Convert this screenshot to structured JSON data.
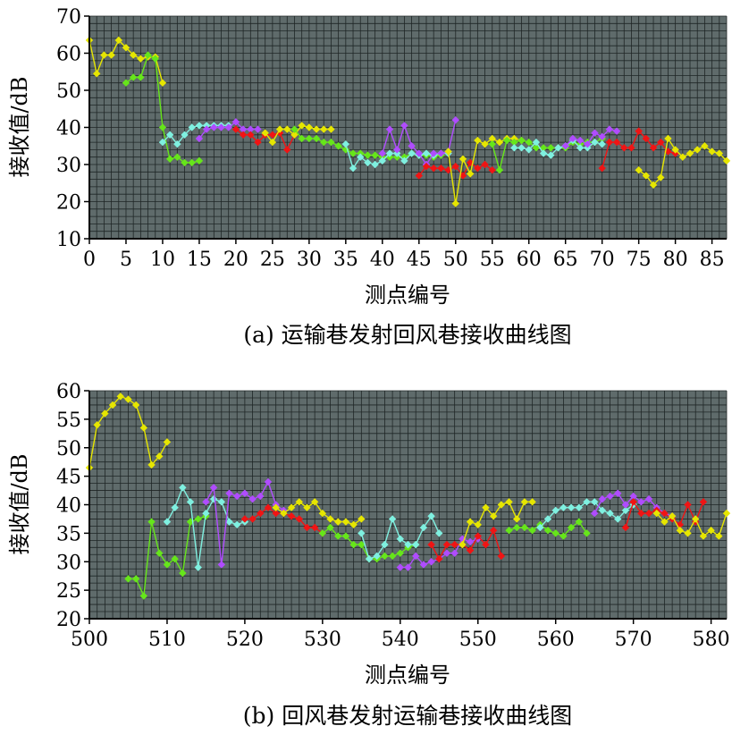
{
  "colors": {
    "plot_background": "#5f6b6b",
    "grid": "#1f2626",
    "yellow": "#e6e600",
    "green": "#66e61a",
    "cyan": "#7ff0e0",
    "purple": "#b04cff",
    "red": "#f01414"
  },
  "chart_data": [
    {
      "type": "line",
      "caption": "(a) 运输巷发射回风巷接收曲线图",
      "xlabel": "测点编号",
      "ylabel": "接收值/dB",
      "xlim": [
        0,
        87
      ],
      "ylim": [
        10,
        70
      ],
      "xticks": [
        "0",
        "5",
        "10",
        "15",
        "20",
        "25",
        "30",
        "35",
        "40",
        "45",
        "50",
        "55",
        "60",
        "65",
        "70",
        "75",
        "80",
        "85"
      ],
      "yticks": [
        "10",
        "20",
        "30",
        "40",
        "50",
        "60",
        "70"
      ],
      "grid": true,
      "series": [
        {
          "color": "yellow",
          "x": [
            0,
            1,
            2,
            3,
            4,
            5,
            6,
            7,
            8,
            9,
            10
          ],
          "y": [
            63.5,
            54.5,
            59.5,
            59.5,
            63.5,
            61.5,
            59.5,
            58.5,
            59,
            59,
            52
          ]
        },
        {
          "color": "green",
          "x": [
            5,
            6,
            7,
            8,
            9,
            10,
            11,
            12,
            13,
            14,
            15
          ],
          "y": [
            52,
            53.5,
            53.5,
            59.5,
            58.5,
            40,
            31.5,
            32,
            30.5,
            30.5,
            31
          ]
        },
        {
          "color": "cyan",
          "x": [
            10,
            11,
            12,
            13,
            14,
            15,
            16,
            17,
            18,
            19
          ],
          "y": [
            36,
            38,
            35.5,
            38,
            40,
            40.5,
            40.5,
            40.5,
            40.5,
            40.5
          ]
        },
        {
          "color": "purple",
          "x": [
            15,
            16,
            17,
            18,
            19,
            20,
            21,
            22,
            23
          ],
          "y": [
            37,
            39.5,
            40,
            40,
            40,
            41.5,
            39.5,
            39.5,
            39.5
          ]
        },
        {
          "color": "red",
          "x": [
            20,
            21,
            22,
            23,
            24,
            25,
            26,
            27,
            28
          ],
          "y": [
            39.5,
            38,
            38,
            36,
            38,
            38,
            38.5,
            34,
            38
          ]
        },
        {
          "color": "yellow",
          "x": [
            24,
            25,
            26,
            27,
            28,
            29,
            30,
            31,
            32,
            33
          ],
          "y": [
            38.5,
            36,
            39.5,
            39.5,
            38,
            40.5,
            40,
            39.5,
            39.5,
            39.5
          ]
        },
        {
          "color": "green",
          "x": [
            28,
            29,
            30,
            31,
            32,
            33,
            34,
            35,
            36,
            37,
            38,
            39,
            40,
            41,
            42,
            43,
            44,
            45,
            46,
            47,
            48
          ],
          "y": [
            39.5,
            37,
            37,
            37,
            36,
            36,
            35,
            34,
            33,
            33,
            32.5,
            32.5,
            32,
            32,
            32,
            32,
            33,
            32.5,
            32.5,
            32,
            32.5
          ]
        },
        {
          "color": "cyan",
          "x": [
            35,
            36,
            37,
            38,
            39,
            40,
            41,
            42,
            43,
            44,
            45,
            46,
            47,
            48,
            49
          ],
          "y": [
            35.5,
            29,
            32,
            30.5,
            30,
            31,
            33,
            33,
            31,
            33,
            32.5,
            33,
            32.5,
            33,
            33
          ]
        },
        {
          "color": "purple",
          "x": [
            40,
            41,
            42,
            43,
            44,
            45,
            46,
            47,
            48,
            49,
            50
          ],
          "y": [
            33,
            39.5,
            34,
            40.5,
            35,
            33,
            30,
            33,
            33,
            33.5,
            42
          ]
        },
        {
          "color": "red",
          "x": [
            45,
            46,
            47,
            48,
            49,
            50,
            51,
            52,
            53,
            54,
            55
          ],
          "y": [
            27,
            29.5,
            29,
            29,
            28.5,
            29.5,
            27,
            30.5,
            29,
            30,
            28.5
          ]
        },
        {
          "color": "yellow",
          "x": [
            49,
            50,
            51,
            52,
            53,
            54,
            55,
            56,
            57,
            58,
            59
          ],
          "y": [
            33.5,
            19.5,
            31.5,
            27.5,
            36.5,
            35.5,
            37,
            36,
            37,
            37,
            36.5
          ]
        },
        {
          "color": "green",
          "x": [
            55,
            56,
            57,
            58,
            59,
            60,
            61,
            62,
            63,
            64,
            65,
            66,
            67,
            68,
            69,
            70
          ],
          "y": [
            35.5,
            28.5,
            36.5,
            36,
            36.5,
            36,
            34.5,
            34.5,
            34.5,
            34.5,
            34.5,
            36,
            35.5,
            36,
            36,
            37
          ]
        },
        {
          "color": "cyan",
          "x": [
            58,
            59,
            60,
            61,
            62,
            63,
            64,
            65,
            66,
            67,
            68,
            69,
            70
          ],
          "y": [
            34.5,
            34.5,
            34,
            36,
            33,
            32.5,
            34.5,
            35,
            36.5,
            34.5,
            34.5,
            36,
            35.5
          ]
        },
        {
          "color": "purple",
          "x": [
            65,
            66,
            67,
            68,
            69,
            70,
            71,
            72
          ],
          "y": [
            35,
            37,
            36.5,
            35.5,
            38.5,
            37.5,
            39.5,
            39
          ]
        },
        {
          "color": "red",
          "x": [
            70,
            71,
            72,
            73,
            74,
            75,
            76,
            77,
            78,
            79,
            80
          ],
          "y": [
            29,
            36,
            36,
            34.5,
            34.5,
            39,
            37,
            34.5,
            36,
            33.5,
            33
          ]
        },
        {
          "color": "yellow",
          "x": [
            75,
            76,
            77,
            78,
            79,
            80,
            81,
            82,
            83,
            84,
            85,
            86,
            87
          ],
          "y": [
            28.5,
            27,
            24.5,
            26.5,
            37,
            34,
            32,
            33,
            34,
            35,
            33.5,
            33,
            31
          ]
        }
      ]
    },
    {
      "type": "line",
      "caption": "(b) 回风巷发射运输巷接收曲线图",
      "xlabel": "测点编号",
      "ylabel": "接收值/dB",
      "xlim": [
        500,
        582
      ],
      "ylim": [
        20,
        60
      ],
      "xticks": [
        "500",
        "510",
        "520",
        "530",
        "540",
        "550",
        "560",
        "570",
        "580"
      ],
      "yticks": [
        "20",
        "25",
        "30",
        "35",
        "40",
        "45",
        "50",
        "55",
        "60"
      ],
      "grid": true,
      "series": [
        {
          "color": "yellow",
          "x": [
            500,
            501,
            502,
            503,
            504,
            505,
            506,
            507,
            508,
            509,
            510
          ],
          "y": [
            46.5,
            54,
            56,
            57.5,
            59,
            58.5,
            57.5,
            53.5,
            47,
            48.5,
            51
          ]
        },
        {
          "color": "green",
          "x": [
            505,
            506,
            507,
            508,
            509,
            510,
            511,
            512,
            513,
            514,
            515
          ],
          "y": [
            27,
            27,
            24,
            37,
            31.5,
            29.5,
            30.5,
            28,
            37,
            37.5,
            38
          ]
        },
        {
          "color": "cyan",
          "x": [
            510,
            511,
            512,
            513,
            514,
            515,
            516,
            517,
            518,
            519,
            520
          ],
          "y": [
            37,
            39.5,
            43,
            40.5,
            29,
            38.5,
            41,
            40.5,
            37,
            36.5,
            37
          ]
        },
        {
          "color": "purple",
          "x": [
            515,
            516,
            517,
            518,
            519,
            520,
            521,
            522,
            523,
            524,
            525
          ],
          "y": [
            40.5,
            43,
            29.5,
            42,
            41.5,
            42,
            41,
            41.5,
            44,
            40,
            39
          ]
        },
        {
          "color": "red",
          "x": [
            520,
            521,
            522,
            523,
            524,
            525,
            526,
            527,
            528,
            529,
            530
          ],
          "y": [
            37.5,
            37.5,
            38.5,
            39.5,
            38.5,
            38.5,
            38,
            37.5,
            36,
            36,
            35
          ]
        },
        {
          "color": "yellow",
          "x": [
            524,
            525,
            526,
            527,
            528,
            529,
            530,
            531,
            532,
            533,
            534,
            535
          ],
          "y": [
            39.5,
            38.5,
            39.5,
            40.5,
            39.5,
            40.5,
            38.5,
            37.5,
            37,
            37,
            36.5,
            37.5
          ]
        },
        {
          "color": "green",
          "x": [
            530,
            531,
            532,
            533,
            534,
            535,
            536,
            537,
            538,
            539,
            540,
            541,
            542
          ],
          "y": [
            35,
            36,
            34.5,
            34.5,
            33,
            33,
            30.5,
            30.5,
            31,
            31,
            31.5,
            32.5,
            33
          ]
        },
        {
          "color": "cyan",
          "x": [
            535,
            536,
            537,
            538,
            539,
            540,
            541,
            542,
            543,
            544,
            545
          ],
          "y": [
            35,
            30.5,
            31,
            33,
            37.5,
            34,
            33,
            33,
            36,
            38,
            35
          ]
        },
        {
          "color": "purple",
          "x": [
            540,
            541,
            542,
            543,
            544,
            545,
            546,
            547,
            548,
            549,
            550
          ],
          "y": [
            29,
            29,
            31,
            29.5,
            30,
            30.5,
            31.5,
            31.5,
            34,
            33.5,
            34
          ]
        },
        {
          "color": "red",
          "x": [
            544,
            545,
            546,
            547,
            548,
            549,
            550,
            551,
            552,
            553
          ],
          "y": [
            33,
            30.5,
            33,
            33,
            33,
            32,
            34.5,
            33,
            35.5,
            31
          ]
        },
        {
          "color": "yellow",
          "x": [
            548,
            549,
            550,
            551,
            552,
            553,
            554,
            555,
            556,
            557
          ],
          "y": [
            33,
            37,
            36.5,
            39.5,
            38,
            40,
            40.5,
            37.5,
            40.5,
            40.5
          ]
        },
        {
          "color": "green",
          "x": [
            554,
            555,
            556,
            557,
            558,
            559,
            560,
            561,
            562,
            563,
            564
          ],
          "y": [
            35.5,
            36,
            36,
            35.5,
            36.5,
            35.5,
            35,
            34.5,
            36,
            37,
            35
          ]
        },
        {
          "color": "cyan",
          "x": [
            558,
            559,
            560,
            561,
            562,
            563,
            564,
            565,
            566,
            567,
            568,
            569,
            570
          ],
          "y": [
            36,
            37.5,
            39,
            39.5,
            39.5,
            39.5,
            40.5,
            40.5,
            39,
            38.5,
            37.5,
            39,
            40
          ]
        },
        {
          "color": "purple",
          "x": [
            565,
            566,
            567,
            568,
            569,
            570,
            571,
            572,
            573,
            574,
            575
          ],
          "y": [
            38.5,
            41,
            41.5,
            42,
            40,
            41.5,
            40.5,
            41,
            39.5,
            38.5,
            38
          ]
        },
        {
          "color": "red",
          "x": [
            569,
            570,
            571,
            572,
            573,
            574,
            575,
            576,
            577,
            578,
            579
          ],
          "y": [
            36,
            40.5,
            38.5,
            38.5,
            39,
            38.5,
            37.5,
            36.5,
            40,
            37,
            40.5
          ]
        },
        {
          "color": "yellow",
          "x": [
            573,
            574,
            575,
            576,
            577,
            578,
            579,
            580,
            581,
            582
          ],
          "y": [
            38.5,
            37,
            38,
            35.5,
            35,
            37.5,
            34.5,
            35.5,
            34.5,
            38.5
          ]
        }
      ]
    }
  ]
}
